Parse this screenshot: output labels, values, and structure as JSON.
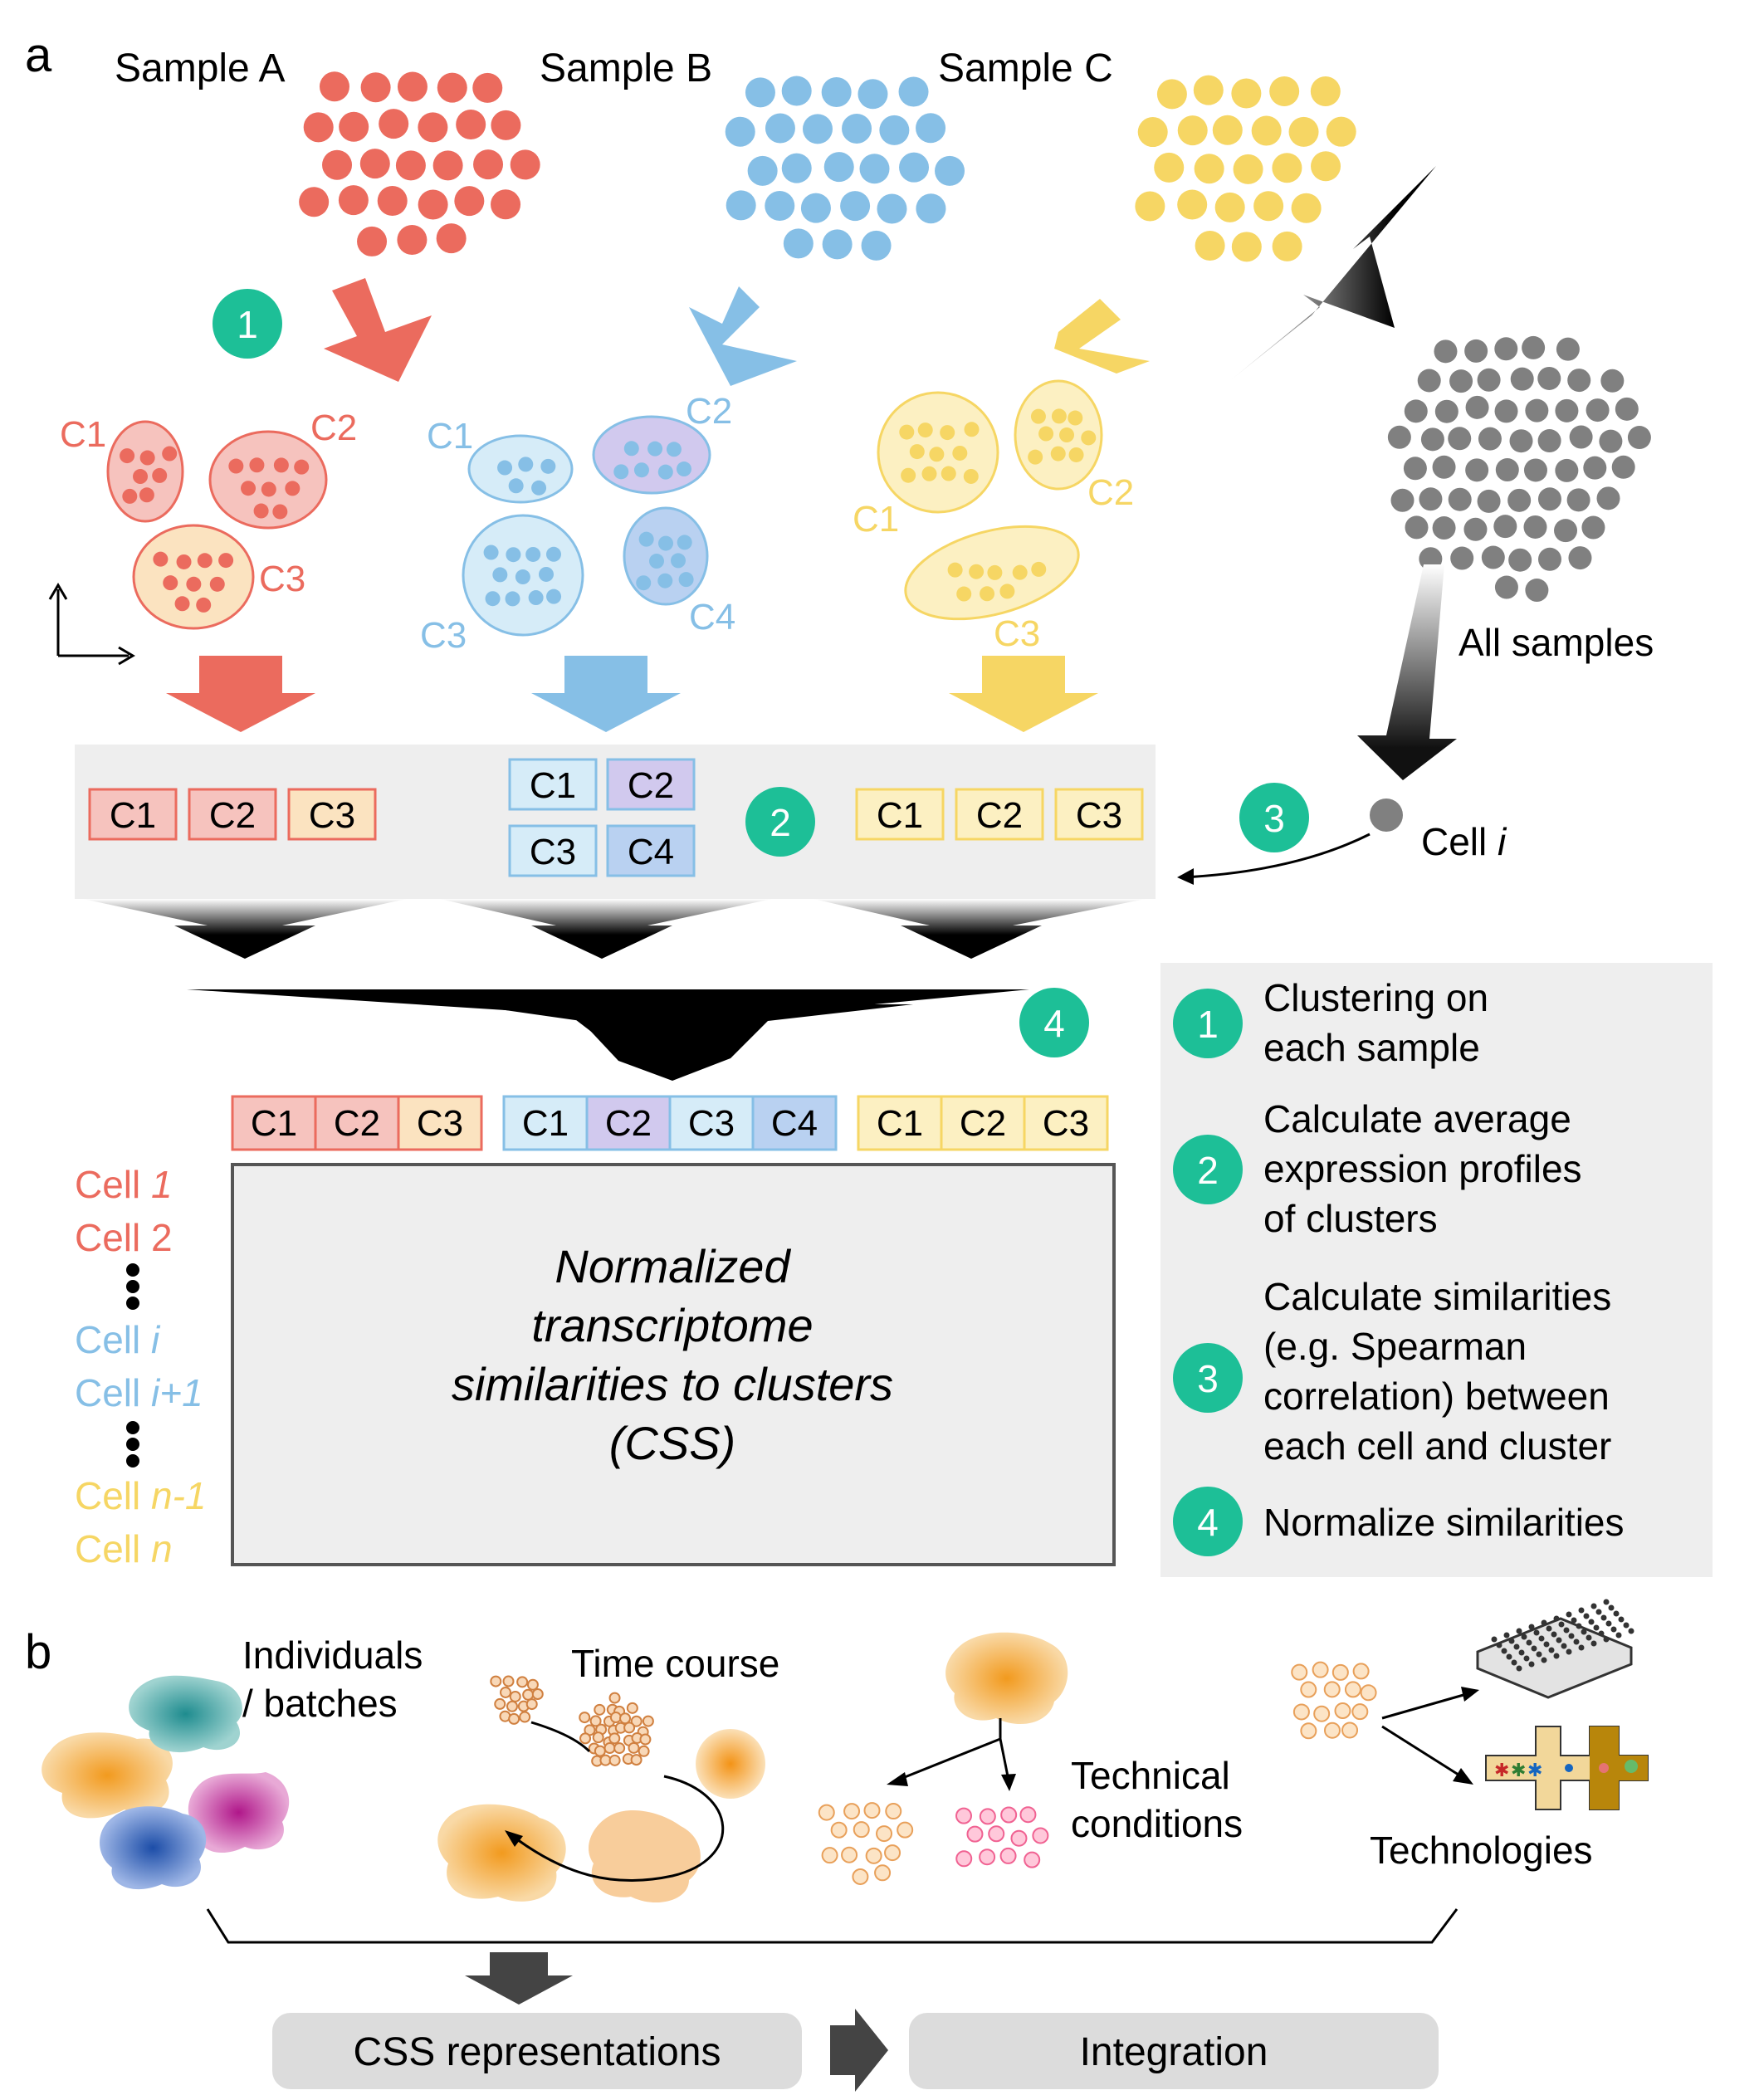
{
  "panel_a": {
    "label": "a",
    "samples": {
      "a_label": "Sample A",
      "b_label": "Sample B",
      "c_label": "Sample C",
      "all_label": "All samples"
    },
    "cluster_labels": {
      "a": [
        "C1",
        "C2",
        "C3"
      ],
      "b": [
        "C1",
        "C2",
        "C3",
        "C4"
      ],
      "c": [
        "C1",
        "C2",
        "C3"
      ]
    },
    "cell_i_prefix": "Cell ",
    "cell_i_var": "i",
    "step_numbers": [
      "1",
      "2",
      "3",
      "4"
    ],
    "row_labels": {
      "cell1_prefix": "Cell ",
      "cell1_var": "1",
      "cell2": "Cell 2",
      "celli_prefix": "Cell ",
      "celli_var": "i",
      "celli1_prefix": "Cell ",
      "celli1_var": "i+1",
      "celln1_prefix": "Cell ",
      "celln1_var": "n-1",
      "celln_prefix": "Cell ",
      "celln_var": "n"
    },
    "css_box_lines": [
      "Normalized",
      "transcriptome",
      "similarities to clusters",
      "(CSS)"
    ],
    "legend": {
      "step1": [
        "Clustering on",
        "each sample"
      ],
      "step2": [
        "Calculate average",
        "expression profiles",
        "of clusters"
      ],
      "step3": [
        "Calculate similarities",
        "(e.g. Spearman",
        "correlation) between",
        "each cell and cluster"
      ],
      "step4": [
        "Normalize similarities"
      ]
    }
  },
  "panel_b": {
    "label": "b",
    "individuals_lines": [
      "Individuals",
      "/ batches"
    ],
    "time_course": "Time course",
    "technical_lines": [
      "Technical",
      "conditions"
    ],
    "technologies": "Technologies",
    "css_representations": "CSS representations",
    "integration": "Integration"
  },
  "colors": {
    "sample_a": "#EB6B5E",
    "sample_b": "#86BFE6",
    "sample_c": "#F6D664",
    "all": "#808080",
    "step_badge": "#1DBF97",
    "panel_bg": "#EEEEEE"
  }
}
